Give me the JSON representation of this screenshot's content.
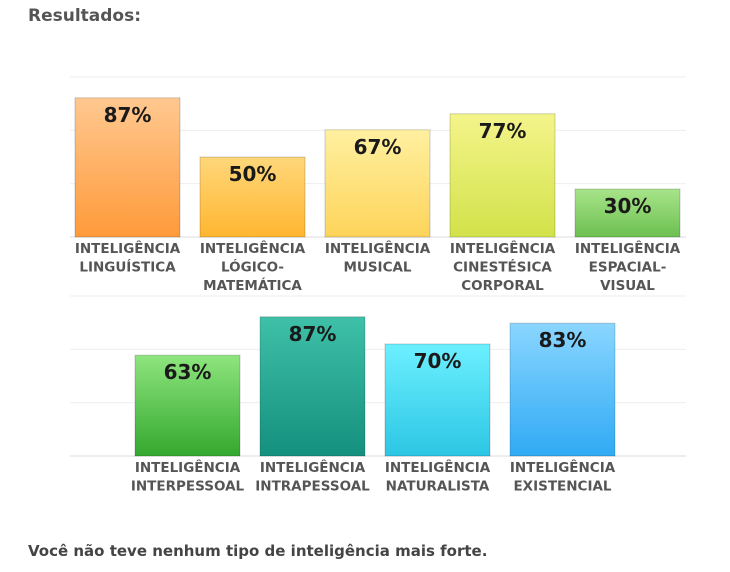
{
  "heading": "Resultados:",
  "footer": "Você não teve nenhum tipo de inteligência mais forte.",
  "chart_data": [
    {
      "type": "bar",
      "categories": [
        [
          "INTELIGÊNCIA",
          "LINGUÍSTICA"
        ],
        [
          "INTELIGÊNCIA",
          "LÓGICO-",
          "MATEMÁTICA"
        ],
        [
          "INTELIGÊNCIA",
          "MUSICAL"
        ],
        [
          "INTELIGÊNCIA",
          "CINESTÉSICA",
          "CORPORAL"
        ],
        [
          "INTELIGÊNCIA",
          "ESPACIAL-",
          "VISUAL"
        ]
      ],
      "values": [
        87,
        50,
        67,
        77,
        30
      ],
      "value_labels": [
        "87%",
        "50%",
        "67%",
        "77%",
        "30%"
      ],
      "colors": [
        [
          "#ffc890",
          "#ff9a3a"
        ],
        [
          "#ffd77a",
          "#ffb630"
        ],
        [
          "#fff0a0",
          "#fdd45a"
        ],
        [
          "#f4f48a",
          "#d2e24a"
        ],
        [
          "#a8e48a",
          "#6cc050"
        ]
      ],
      "ylim": [
        0,
        100
      ],
      "grid": true
    },
    {
      "type": "bar",
      "categories": [
        [
          "INTELIGÊNCIA",
          "INTERPESSOAL"
        ],
        [
          "INTELIGÊNCIA",
          "INTRAPESSOAL"
        ],
        [
          "INTELIGÊNCIA",
          "NATURALISTA"
        ],
        [
          "INTELIGÊNCIA",
          "EXISTENCIAL"
        ]
      ],
      "values": [
        63,
        87,
        70,
        83
      ],
      "value_labels": [
        "63%",
        "87%",
        "70%",
        "83%"
      ],
      "colors": [
        [
          "#8ee57e",
          "#34a82e"
        ],
        [
          "#3fc0a8",
          "#14907e"
        ],
        [
          "#6cf0ff",
          "#2cc6e4"
        ],
        [
          "#8ad6ff",
          "#30aaf4"
        ]
      ],
      "ylim": [
        0,
        100
      ],
      "grid": true
    }
  ]
}
